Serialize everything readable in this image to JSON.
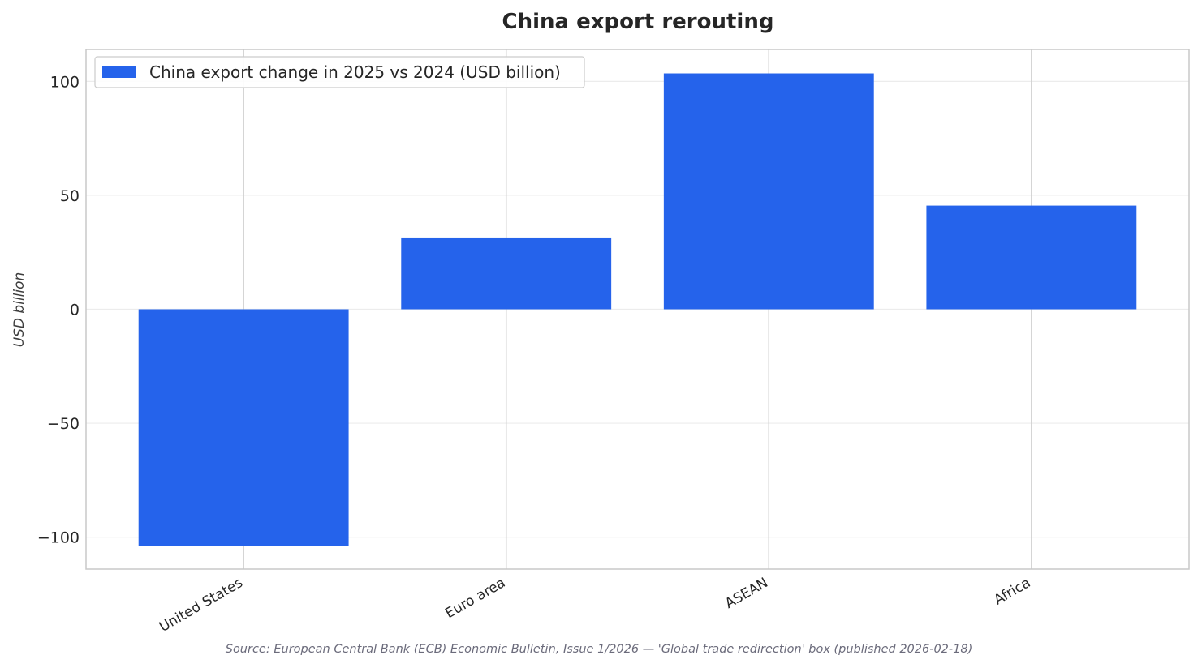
{
  "chart_data": {
    "type": "bar",
    "title": "China export rerouting",
    "xlabel": "",
    "ylabel": "USD billion",
    "categories": [
      "United States",
      "Euro area",
      "ASEAN",
      "Africa"
    ],
    "series": [
      {
        "name": "China export change in 2025 vs 2024 (USD billion)",
        "values": [
          -104,
          31.5,
          103.5,
          45.5
        ],
        "color": "#2563eb"
      }
    ],
    "ylim": [
      -114,
      114
    ],
    "yticks": [
      -100,
      -50,
      0,
      50,
      100
    ],
    "ytick_labels": [
      "−100",
      "−50",
      "0",
      "50",
      "100"
    ],
    "grid": true,
    "legend_position": "top-left",
    "source": "Source: European Central Bank (ECB) Economic Bulletin, Issue 1/2026 — 'Global trade redirection' box (published 2026-02-18)"
  }
}
